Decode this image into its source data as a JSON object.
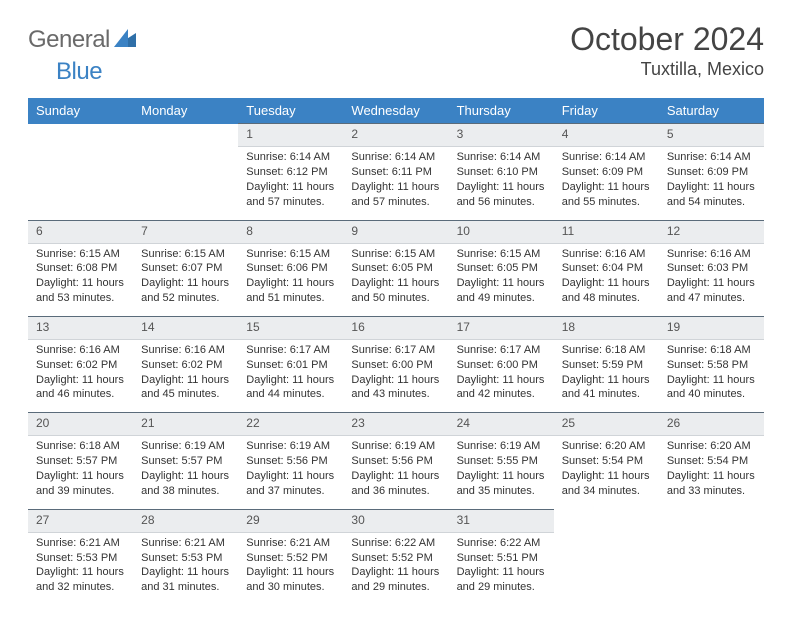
{
  "brand": {
    "part1": "General",
    "part2": "Blue"
  },
  "title": "October 2024",
  "location": "Tuxtilla, Mexico",
  "colors": {
    "header_bg": "#3b82c4",
    "daynum_bg": "#ebedef",
    "daynum_border_top": "#5a6b7a",
    "text": "#333333"
  },
  "weekdays": [
    "Sunday",
    "Monday",
    "Tuesday",
    "Wednesday",
    "Thursday",
    "Friday",
    "Saturday"
  ],
  "weeks": [
    [
      null,
      null,
      {
        "d": "1",
        "sr": "6:14 AM",
        "ss": "6:12 PM",
        "dl": "11 hours and 57 minutes."
      },
      {
        "d": "2",
        "sr": "6:14 AM",
        "ss": "6:11 PM",
        "dl": "11 hours and 57 minutes."
      },
      {
        "d": "3",
        "sr": "6:14 AM",
        "ss": "6:10 PM",
        "dl": "11 hours and 56 minutes."
      },
      {
        "d": "4",
        "sr": "6:14 AM",
        "ss": "6:09 PM",
        "dl": "11 hours and 55 minutes."
      },
      {
        "d": "5",
        "sr": "6:14 AM",
        "ss": "6:09 PM",
        "dl": "11 hours and 54 minutes."
      }
    ],
    [
      {
        "d": "6",
        "sr": "6:15 AM",
        "ss": "6:08 PM",
        "dl": "11 hours and 53 minutes."
      },
      {
        "d": "7",
        "sr": "6:15 AM",
        "ss": "6:07 PM",
        "dl": "11 hours and 52 minutes."
      },
      {
        "d": "8",
        "sr": "6:15 AM",
        "ss": "6:06 PM",
        "dl": "11 hours and 51 minutes."
      },
      {
        "d": "9",
        "sr": "6:15 AM",
        "ss": "6:05 PM",
        "dl": "11 hours and 50 minutes."
      },
      {
        "d": "10",
        "sr": "6:15 AM",
        "ss": "6:05 PM",
        "dl": "11 hours and 49 minutes."
      },
      {
        "d": "11",
        "sr": "6:16 AM",
        "ss": "6:04 PM",
        "dl": "11 hours and 48 minutes."
      },
      {
        "d": "12",
        "sr": "6:16 AM",
        "ss": "6:03 PM",
        "dl": "11 hours and 47 minutes."
      }
    ],
    [
      {
        "d": "13",
        "sr": "6:16 AM",
        "ss": "6:02 PM",
        "dl": "11 hours and 46 minutes."
      },
      {
        "d": "14",
        "sr": "6:16 AM",
        "ss": "6:02 PM",
        "dl": "11 hours and 45 minutes."
      },
      {
        "d": "15",
        "sr": "6:17 AM",
        "ss": "6:01 PM",
        "dl": "11 hours and 44 minutes."
      },
      {
        "d": "16",
        "sr": "6:17 AM",
        "ss": "6:00 PM",
        "dl": "11 hours and 43 minutes."
      },
      {
        "d": "17",
        "sr": "6:17 AM",
        "ss": "6:00 PM",
        "dl": "11 hours and 42 minutes."
      },
      {
        "d": "18",
        "sr": "6:18 AM",
        "ss": "5:59 PM",
        "dl": "11 hours and 41 minutes."
      },
      {
        "d": "19",
        "sr": "6:18 AM",
        "ss": "5:58 PM",
        "dl": "11 hours and 40 minutes."
      }
    ],
    [
      {
        "d": "20",
        "sr": "6:18 AM",
        "ss": "5:57 PM",
        "dl": "11 hours and 39 minutes."
      },
      {
        "d": "21",
        "sr": "6:19 AM",
        "ss": "5:57 PM",
        "dl": "11 hours and 38 minutes."
      },
      {
        "d": "22",
        "sr": "6:19 AM",
        "ss": "5:56 PM",
        "dl": "11 hours and 37 minutes."
      },
      {
        "d": "23",
        "sr": "6:19 AM",
        "ss": "5:56 PM",
        "dl": "11 hours and 36 minutes."
      },
      {
        "d": "24",
        "sr": "6:19 AM",
        "ss": "5:55 PM",
        "dl": "11 hours and 35 minutes."
      },
      {
        "d": "25",
        "sr": "6:20 AM",
        "ss": "5:54 PM",
        "dl": "11 hours and 34 minutes."
      },
      {
        "d": "26",
        "sr": "6:20 AM",
        "ss": "5:54 PM",
        "dl": "11 hours and 33 minutes."
      }
    ],
    [
      {
        "d": "27",
        "sr": "6:21 AM",
        "ss": "5:53 PM",
        "dl": "11 hours and 32 minutes."
      },
      {
        "d": "28",
        "sr": "6:21 AM",
        "ss": "5:53 PM",
        "dl": "11 hours and 31 minutes."
      },
      {
        "d": "29",
        "sr": "6:21 AM",
        "ss": "5:52 PM",
        "dl": "11 hours and 30 minutes."
      },
      {
        "d": "30",
        "sr": "6:22 AM",
        "ss": "5:52 PM",
        "dl": "11 hours and 29 minutes."
      },
      {
        "d": "31",
        "sr": "6:22 AM",
        "ss": "5:51 PM",
        "dl": "11 hours and 29 minutes."
      },
      null,
      null
    ]
  ],
  "labels": {
    "sunrise": "Sunrise: ",
    "sunset": "Sunset: ",
    "daylight": "Daylight: "
  }
}
